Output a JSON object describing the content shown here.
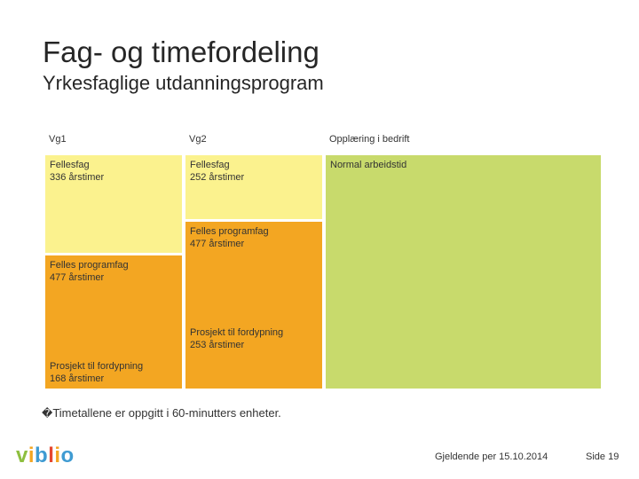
{
  "header": {
    "title": "Fag- og timefordeling",
    "subtitle": "Yrkesfaglige utdanningsprogram"
  },
  "columns": {
    "vg1": "Vg1",
    "vg2": "Vg2",
    "bedrift": "Opplæring i bedrift"
  },
  "blocks": {
    "vg1_fellesfag": {
      "name": "Fellesfag",
      "hours": "336 årstimer"
    },
    "vg1_programfag": {
      "name": "Felles programfag",
      "hours": "477 årstimer"
    },
    "vg1_prosjekt": {
      "name": "Prosjekt til fordypning",
      "hours": "168 årstimer"
    },
    "vg2_fellesfag": {
      "name": "Fellesfag",
      "hours": "252 årstimer"
    },
    "vg2_programfag": {
      "name": "Felles programfag",
      "hours": "477 årstimer"
    },
    "vg2_prosjekt": {
      "name": "Prosjekt til fordypning",
      "hours": "253 årstimer"
    },
    "bedrift": {
      "name": "Normal arbeidstid"
    }
  },
  "colors": {
    "fellesfag": "#fbf28e",
    "programfag": "#f3a622",
    "bedrift": "#c8da6c"
  },
  "footnote": {
    "mark": "�",
    "text": "Timetallene er oppgitt i 60-minutters enheter."
  },
  "footer": {
    "logo": "viblio",
    "valid_from": "Gjeldende per 15.10.2014",
    "page": "Side 19"
  }
}
